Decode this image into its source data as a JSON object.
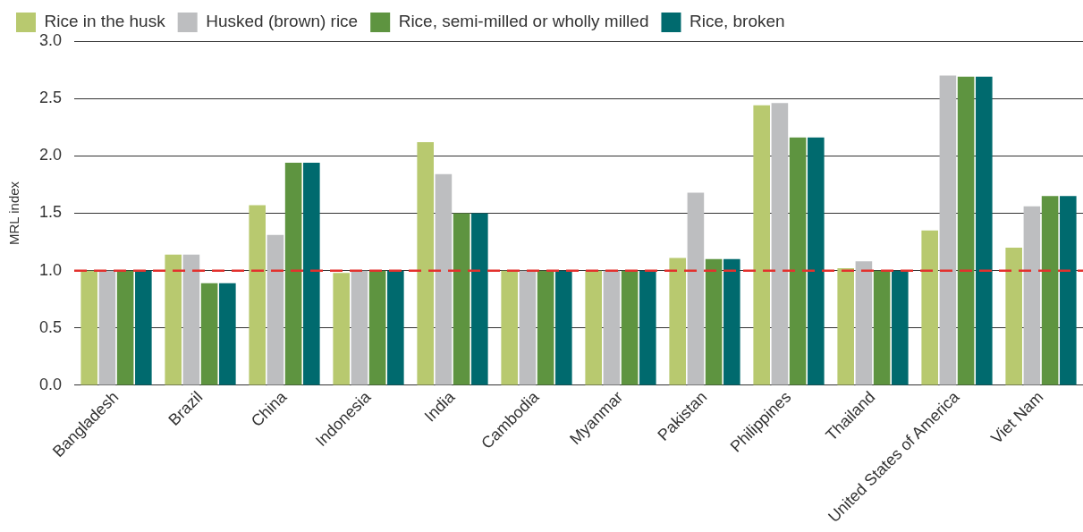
{
  "chart_data": {
    "type": "bar",
    "ylabel": "MRL index",
    "categories": [
      "Bangladesh",
      "Brazil",
      "China",
      "Indonesia",
      "India",
      "Cambodia",
      "Myanmar",
      "Pakistan",
      "Philippines",
      "Thailand",
      "United States of America",
      "Viet Nam"
    ],
    "series": [
      {
        "name": "Rice in the husk",
        "color": "#b8c96f",
        "values": [
          1.0,
          1.14,
          1.57,
          0.98,
          2.12,
          1.0,
          1.0,
          1.11,
          2.44,
          1.02,
          1.35,
          1.2
        ]
      },
      {
        "name": "Husked (brown) rice",
        "color": "#bdbec0",
        "values": [
          1.0,
          1.14,
          1.31,
          1.0,
          1.84,
          1.0,
          1.0,
          1.68,
          2.46,
          1.08,
          2.7,
          1.56
        ]
      },
      {
        "name": "Rice, semi-milled or wholly milled",
        "color": "#5e9440",
        "values": [
          1.0,
          0.89,
          1.94,
          1.0,
          1.5,
          1.0,
          1.0,
          1.1,
          2.16,
          1.0,
          2.69,
          1.65
        ]
      },
      {
        "name": "Rice, broken",
        "color": "#006a6e",
        "values": [
          1.0,
          0.89,
          1.94,
          1.0,
          1.5,
          1.0,
          1.0,
          1.1,
          2.16,
          1.0,
          2.69,
          1.65
        ]
      }
    ],
    "ylim": [
      0,
      3
    ],
    "yticks": [
      {
        "value": 0,
        "label": "0.0"
      },
      {
        "value": 0.5,
        "label": "0.5"
      },
      {
        "value": 1,
        "label": "1.0"
      },
      {
        "value": 1.5,
        "label": "1.5"
      },
      {
        "value": 2,
        "label": "2.0"
      },
      {
        "value": 2.5,
        "label": "2.5"
      },
      {
        "value": 3,
        "label": "3.0"
      }
    ],
    "grid": "y",
    "legend": "top left",
    "ref_lines": [
      {
        "axis": "y",
        "value": 1,
        "color": "#e3312d",
        "line_style": "dashed"
      }
    ]
  }
}
